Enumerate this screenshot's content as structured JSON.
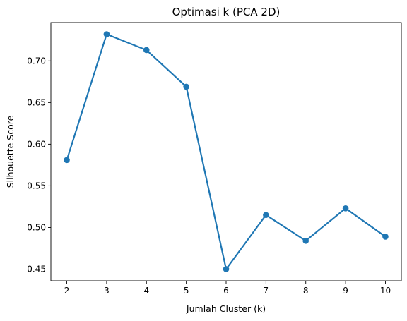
{
  "chart_data": {
    "type": "line",
    "title": "Optimasi k (PCA 2D)",
    "xlabel": "Jumlah Cluster (k)",
    "ylabel": "Silhouette Score",
    "x": [
      2,
      3,
      4,
      5,
      6,
      7,
      8,
      9,
      10
    ],
    "series": [
      {
        "values": [
          0.581,
          0.732,
          0.713,
          0.669,
          0.45,
          0.515,
          0.484,
          0.523,
          0.489
        ],
        "color": "#1f77b4",
        "marker": "circle"
      }
    ],
    "xticks": [
      2,
      3,
      4,
      5,
      6,
      7,
      8,
      9,
      10
    ],
    "yticks": [
      "0.45",
      "0.50",
      "0.55",
      "0.60",
      "0.65",
      "0.70"
    ],
    "xlim": [
      1.6,
      10.4
    ],
    "ylim": [
      0.436,
      0.746
    ],
    "grid": false,
    "legend": "none"
  }
}
